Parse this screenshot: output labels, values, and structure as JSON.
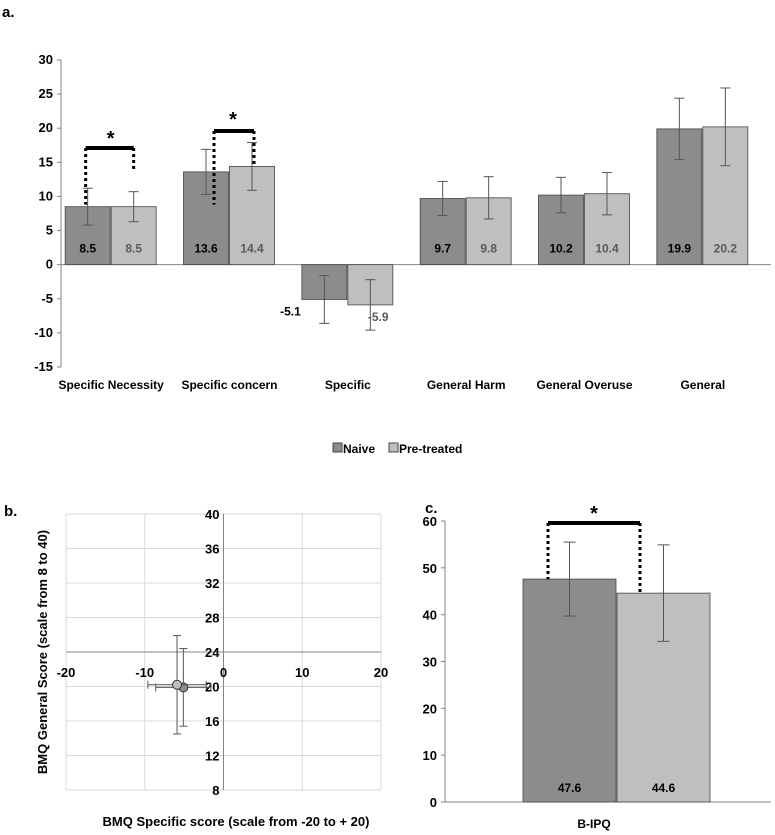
{
  "colors": {
    "naive": "#8c8c8c",
    "pretreated": "#bfbfbf",
    "axis": "#868686",
    "grid": "#d9d9d9"
  },
  "chart_data": [
    {
      "panel": "a.",
      "type": "bar",
      "categories": [
        "Specific Necessity",
        "Specific concern",
        "Specific",
        "General Harm",
        "General Overuse",
        "General"
      ],
      "series": [
        {
          "name": "Naive",
          "values": [
            8.5,
            13.6,
            -5.1,
            9.7,
            10.2,
            19.9
          ],
          "err": [
            2.7,
            3.3,
            3.5,
            2.5,
            2.6,
            4.5
          ]
        },
        {
          "name": "Pre-treated",
          "values": [
            8.5,
            14.4,
            -5.9,
            9.8,
            10.4,
            20.2
          ],
          "err": [
            2.2,
            3.5,
            3.7,
            3.1,
            3.1,
            5.7
          ]
        }
      ],
      "ylim": [
        -15,
        30
      ],
      "yticks": [
        "-15",
        "-10",
        "-5",
        "0",
        "5",
        "10",
        "15",
        "20",
        "25",
        "30"
      ],
      "data_labels": [
        "8.5",
        "13.6",
        "-5.1",
        "9.7",
        "10.2",
        "19.9",
        "8.5",
        "14.4",
        "-5.9",
        "9.8",
        "10.4",
        "20.2"
      ],
      "significance": [
        "*",
        "*"
      ],
      "legend": {
        "position": "bottom",
        "entries": [
          "Naive",
          "Pre-treated"
        ]
      }
    },
    {
      "panel": "b.",
      "type": "scatter",
      "xlabel": "BMQ Specific score (scale from -20 to + 20)",
      "ylabel": "BMQ General Score (scale from 8 to 40)",
      "xlim": [
        -20,
        20
      ],
      "ylim": [
        8,
        40
      ],
      "xticks": [
        "-20",
        "-10",
        "0",
        "10",
        "20"
      ],
      "yticks": [
        "8",
        "12",
        "16",
        "20",
        "24",
        "28",
        "32",
        "36",
        "40"
      ],
      "points": [
        {
          "series": "Naive",
          "x": -5.1,
          "y": 19.9,
          "xerr": 3.5,
          "yerr": 4.5
        },
        {
          "series": "Pre-treated",
          "x": -5.9,
          "y": 20.2,
          "xerr": 3.7,
          "yerr": 5.7
        }
      ],
      "grid": true
    },
    {
      "panel": "c.",
      "type": "bar",
      "categories": [
        "B-IPQ"
      ],
      "series": [
        {
          "name": "Naive",
          "values": [
            47.6
          ],
          "err": [
            7.9
          ]
        },
        {
          "name": "Pre-treated",
          "values": [
            44.6
          ],
          "err": [
            10.3
          ]
        }
      ],
      "ylim": [
        0,
        60
      ],
      "yticks": [
        "0",
        "10",
        "20",
        "30",
        "40",
        "50",
        "60"
      ],
      "data_labels": [
        "47.6",
        "44.6"
      ],
      "xlabel": "B-IPQ",
      "significance": [
        "*"
      ]
    }
  ]
}
